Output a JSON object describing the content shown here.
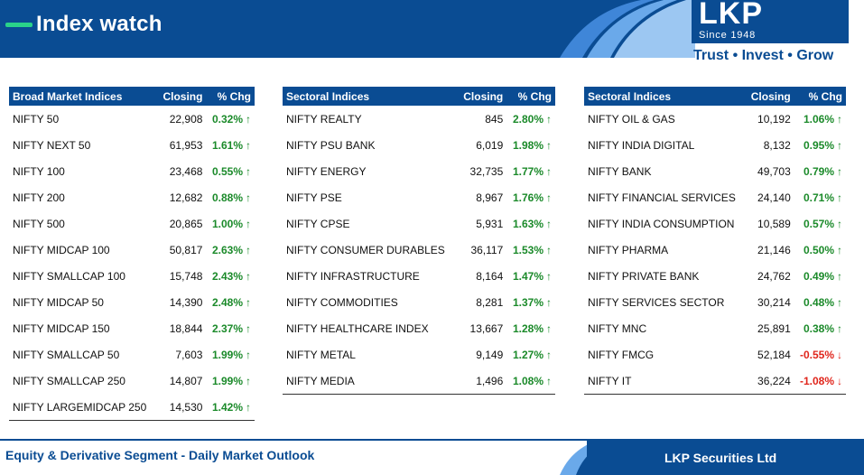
{
  "header": {
    "title": "Index watch",
    "logo": "LKP",
    "since": "Since 1948",
    "tagline": "Trust • Invest • Grow"
  },
  "colors": {
    "brand": "#0a4c93",
    "positive": "#1b8a2a",
    "negative": "#e0251b",
    "accent": "#2ad28a"
  },
  "icons": {
    "up": "arrow-up-icon",
    "down": "arrow-down-icon"
  },
  "tables": [
    {
      "headers": [
        "Broad Market Indices",
        "Closing",
        "% Chg"
      ],
      "rows": [
        {
          "name": "NIFTY 50",
          "close": "22,908",
          "chg": "0.32%",
          "dir": "up"
        },
        {
          "name": "NIFTY NEXT 50",
          "close": "61,953",
          "chg": "1.61%",
          "dir": "up"
        },
        {
          "name": "NIFTY 100",
          "close": "23,468",
          "chg": "0.55%",
          "dir": "up"
        },
        {
          "name": "NIFTY 200",
          "close": "12,682",
          "chg": "0.88%",
          "dir": "up"
        },
        {
          "name": "NIFTY 500",
          "close": "20,865",
          "chg": "1.00%",
          "dir": "up"
        },
        {
          "name": "NIFTY MIDCAP 100",
          "close": "50,817",
          "chg": "2.63%",
          "dir": "up"
        },
        {
          "name": "NIFTY SMALLCAP 100",
          "close": "15,748",
          "chg": "2.43%",
          "dir": "up"
        },
        {
          "name": "NIFTY MIDCAP 50",
          "close": "14,390",
          "chg": "2.48%",
          "dir": "up"
        },
        {
          "name": "NIFTY MIDCAP 150",
          "close": "18,844",
          "chg": "2.37%",
          "dir": "up"
        },
        {
          "name": "NIFTY SMALLCAP 50",
          "close": "7,603",
          "chg": "1.99%",
          "dir": "up"
        },
        {
          "name": "NIFTY SMALLCAP 250",
          "close": "14,807",
          "chg": "1.99%",
          "dir": "up"
        },
        {
          "name": "NIFTY LARGEMIDCAP 250",
          "close": "14,530",
          "chg": "1.42%",
          "dir": "up"
        }
      ]
    },
    {
      "headers": [
        "Sectoral Indices",
        "Closing",
        "% Chg"
      ],
      "rows": [
        {
          "name": "NIFTY REALTY",
          "close": "845",
          "chg": "2.80%",
          "dir": "up"
        },
        {
          "name": "NIFTY PSU BANK",
          "close": "6,019",
          "chg": "1.98%",
          "dir": "up"
        },
        {
          "name": "NIFTY ENERGY",
          "close": "32,735",
          "chg": "1.77%",
          "dir": "up"
        },
        {
          "name": "NIFTY PSE",
          "close": "8,967",
          "chg": "1.76%",
          "dir": "up"
        },
        {
          "name": "NIFTY CPSE",
          "close": "5,931",
          "chg": "1.63%",
          "dir": "up"
        },
        {
          "name": "NIFTY CONSUMER DURABLES",
          "close": "36,117",
          "chg": "1.53%",
          "dir": "up"
        },
        {
          "name": "NIFTY INFRASTRUCTURE",
          "close": "8,164",
          "chg": "1.47%",
          "dir": "up"
        },
        {
          "name": "NIFTY COMMODITIES",
          "close": "8,281",
          "chg": "1.37%",
          "dir": "up"
        },
        {
          "name": "NIFTY HEALTHCARE INDEX",
          "close": "13,667",
          "chg": "1.28%",
          "dir": "up"
        },
        {
          "name": "NIFTY METAL",
          "close": "9,149",
          "chg": "1.27%",
          "dir": "up"
        },
        {
          "name": "NIFTY MEDIA",
          "close": "1,496",
          "chg": "1.08%",
          "dir": "up"
        }
      ]
    },
    {
      "headers": [
        "Sectoral Indices",
        "Closing",
        "% Chg"
      ],
      "rows": [
        {
          "name": "NIFTY OIL & GAS",
          "close": "10,192",
          "chg": "1.06%",
          "dir": "up"
        },
        {
          "name": "NIFTY INDIA DIGITAL",
          "close": "8,132",
          "chg": "0.95%",
          "dir": "up"
        },
        {
          "name": "NIFTY BANK",
          "close": "49,703",
          "chg": "0.79%",
          "dir": "up"
        },
        {
          "name": "NIFTY FINANCIAL SERVICES",
          "close": "24,140",
          "chg": "0.71%",
          "dir": "up"
        },
        {
          "name": "NIFTY INDIA CONSUMPTION",
          "close": "10,589",
          "chg": "0.57%",
          "dir": "up"
        },
        {
          "name": "NIFTY PHARMA",
          "close": "21,146",
          "chg": "0.50%",
          "dir": "up"
        },
        {
          "name": "NIFTY PRIVATE BANK",
          "close": "24,762",
          "chg": "0.49%",
          "dir": "up"
        },
        {
          "name": "NIFTY SERVICES SECTOR",
          "close": "30,214",
          "chg": "0.48%",
          "dir": "up"
        },
        {
          "name": "NIFTY MNC",
          "close": "25,891",
          "chg": "0.38%",
          "dir": "up"
        },
        {
          "name": "NIFTY FMCG",
          "close": "52,184",
          "chg": "-0.55%",
          "dir": "down"
        },
        {
          "name": "NIFTY IT",
          "close": "36,224",
          "chg": "-1.08%",
          "dir": "down"
        }
      ]
    }
  ],
  "footer": {
    "left": "Equity & Derivative Segment - Daily Market Outlook",
    "right": "LKP Securities Ltd"
  }
}
